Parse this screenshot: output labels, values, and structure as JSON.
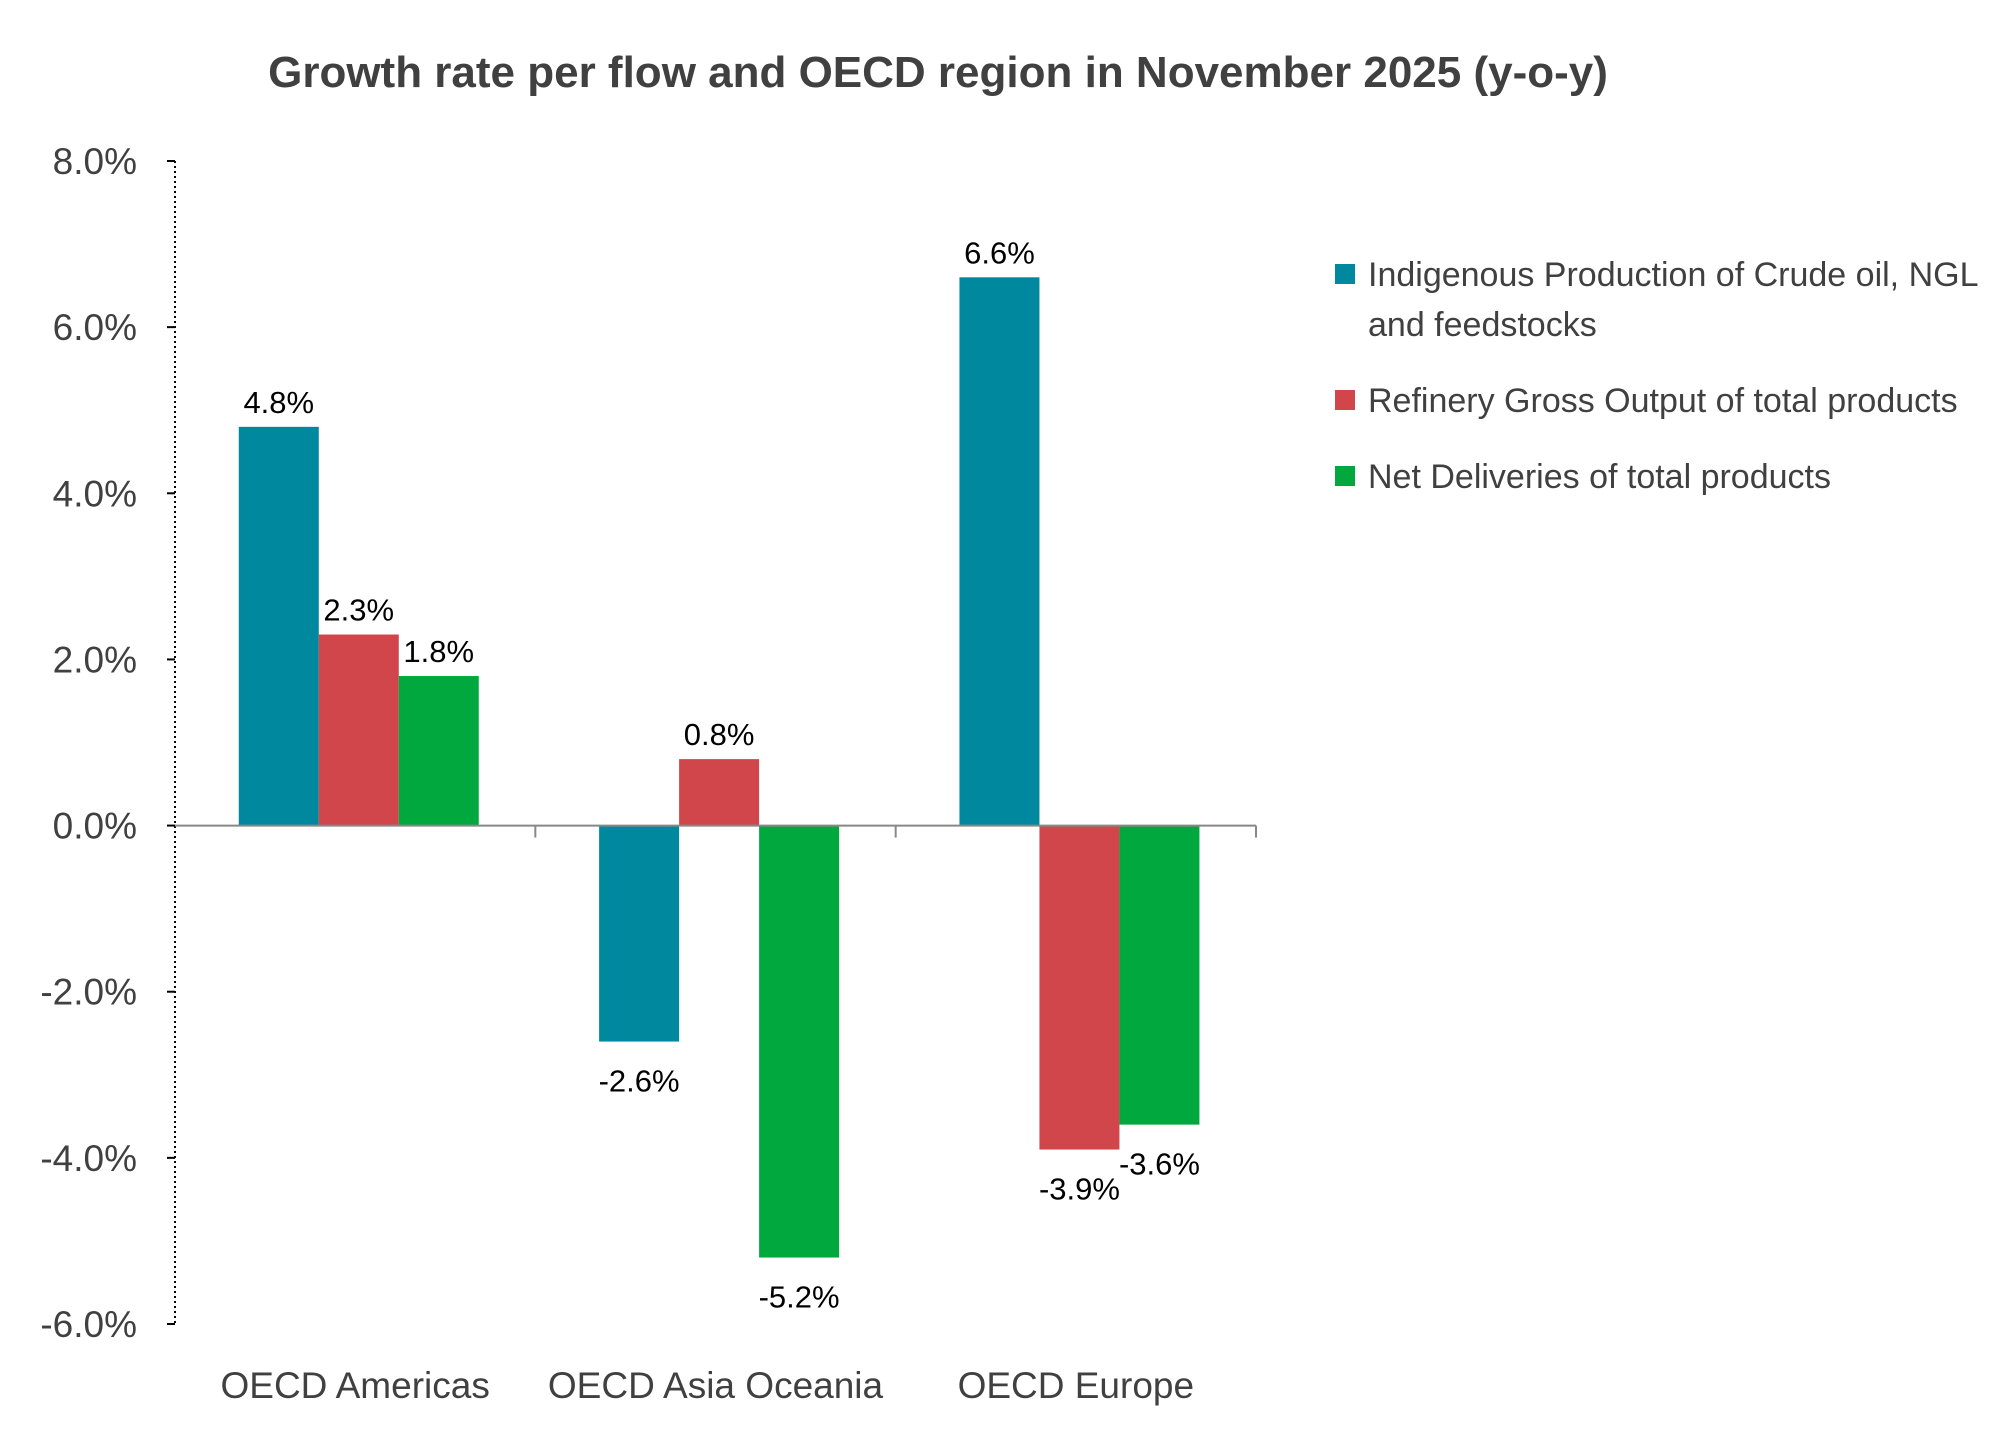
{
  "chart_data": {
    "type": "bar",
    "title": "Growth rate per flow and OECD region in November 2025 (y-o-y)",
    "categories": [
      "OECD Americas",
      "OECD Asia Oceania",
      "OECD Europe"
    ],
    "series": [
      {
        "name": "Indigenous Production of Crude oil, NGL and feedstocks",
        "color": "#00889E",
        "values": [
          4.8,
          -2.6,
          6.6
        ],
        "labels": [
          "4.8%",
          "-2.6%",
          "6.6%"
        ]
      },
      {
        "name": "Refinery Gross Output of total products",
        "color": "#D0464A",
        "values": [
          2.3,
          0.8,
          -3.9
        ],
        "labels": [
          "2.3%",
          "0.8%",
          "-3.9%"
        ]
      },
      {
        "name": "Net Deliveries of total products",
        "color": "#00A83E",
        "values": [
          1.8,
          -5.2,
          -3.6
        ],
        "labels": [
          "1.8%",
          "-5.2%",
          "-3.6%"
        ]
      }
    ],
    "ylim": [
      -6,
      8
    ],
    "yticks": [
      8,
      6,
      4,
      2,
      0,
      -2,
      -4,
      -6
    ],
    "ytick_labels": [
      "8.0%",
      "6.0%",
      "4.0%",
      "2.0%",
      "0.0%",
      "-2.0%",
      "-4.0%",
      "-6.0%"
    ],
    "xlabel": "",
    "ylabel": "",
    "grid": false,
    "legend": "right"
  }
}
